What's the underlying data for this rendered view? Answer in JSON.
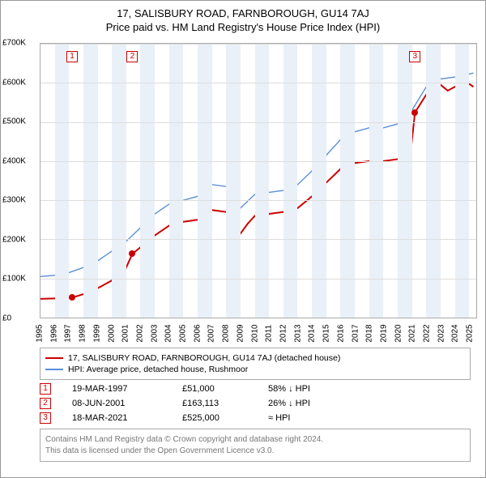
{
  "title": {
    "line1": "17, SALISBURY ROAD, FARNBOROUGH, GU14 7AJ",
    "line2": "Price paid vs. HM Land Registry's House Price Index (HPI)"
  },
  "chart": {
    "type": "line",
    "xlim": [
      1995,
      2025.5
    ],
    "ylim": [
      0,
      700000
    ],
    "ytick_step": 100000,
    "ytick_labels": [
      "£0",
      "£100K",
      "£200K",
      "£300K",
      "£400K",
      "£500K",
      "£600K",
      "£700K"
    ],
    "xtick_step": 1,
    "xtick_start": 1995,
    "xtick_end": 2025,
    "background_color": "#ffffff",
    "grid_color": "#dddddd",
    "alt_band_color": "#eaf0f8",
    "axis_fontsize": 10,
    "series": {
      "price_paid": {
        "label": "17, SALISBURY ROAD, FARNBOROUGH, GU14 7AJ (detached house)",
        "color": "#cc0000",
        "line_width": 2,
        "data": [
          [
            1995.0,
            48000
          ],
          [
            1996.0,
            49000
          ],
          [
            1997.21,
            51000
          ],
          [
            1997.22,
            51000
          ],
          [
            1998.0,
            60000
          ],
          [
            1999.0,
            75000
          ],
          [
            2000.0,
            95000
          ],
          [
            2000.9,
            120000
          ],
          [
            2001.43,
            163113
          ],
          [
            2001.44,
            163113
          ],
          [
            2002.0,
            180000
          ],
          [
            2003.0,
            210000
          ],
          [
            2004.0,
            235000
          ],
          [
            2005.0,
            245000
          ],
          [
            2006.0,
            250000
          ],
          [
            2007.0,
            275000
          ],
          [
            2008.0,
            270000
          ],
          [
            2008.7,
            225000
          ],
          [
            2009.0,
            215000
          ],
          [
            2009.5,
            240000
          ],
          [
            2010.0,
            260000
          ],
          [
            2011.0,
            265000
          ],
          [
            2012.0,
            270000
          ],
          [
            2013.0,
            280000
          ],
          [
            2014.0,
            310000
          ],
          [
            2015.0,
            345000
          ],
          [
            2016.0,
            380000
          ],
          [
            2017.0,
            395000
          ],
          [
            2018.0,
            400000
          ],
          [
            2019.0,
            400000
          ],
          [
            2020.0,
            405000
          ],
          [
            2020.9,
            420000
          ],
          [
            2021.21,
            525000
          ],
          [
            2021.22,
            525000
          ],
          [
            2022.0,
            570000
          ],
          [
            2022.7,
            610000
          ],
          [
            2023.0,
            595000
          ],
          [
            2023.5,
            580000
          ],
          [
            2024.0,
            590000
          ],
          [
            2024.7,
            605000
          ],
          [
            2025.3,
            590000
          ]
        ]
      },
      "hpi": {
        "label": "HPI: Average price, detached house, Rushmoor",
        "color": "#5b8fd6",
        "line_width": 1.4,
        "data": [
          [
            1995.0,
            105000
          ],
          [
            1996.0,
            108000
          ],
          [
            1997.0,
            115000
          ],
          [
            1998.0,
            128000
          ],
          [
            1999.0,
            145000
          ],
          [
            2000.0,
            170000
          ],
          [
            2001.0,
            195000
          ],
          [
            2002.0,
            230000
          ],
          [
            2003.0,
            265000
          ],
          [
            2004.0,
            290000
          ],
          [
            2005.0,
            300000
          ],
          [
            2006.0,
            310000
          ],
          [
            2007.0,
            340000
          ],
          [
            2008.0,
            335000
          ],
          [
            2008.7,
            290000
          ],
          [
            2009.0,
            280000
          ],
          [
            2010.0,
            315000
          ],
          [
            2011.0,
            320000
          ],
          [
            2012.0,
            325000
          ],
          [
            2013.0,
            340000
          ],
          [
            2014.0,
            375000
          ],
          [
            2015.0,
            415000
          ],
          [
            2016.0,
            455000
          ],
          [
            2017.0,
            475000
          ],
          [
            2018.0,
            485000
          ],
          [
            2019.0,
            485000
          ],
          [
            2020.0,
            495000
          ],
          [
            2021.0,
            530000
          ],
          [
            2022.0,
            590000
          ],
          [
            2022.7,
            625000
          ],
          [
            2023.0,
            610000
          ],
          [
            2024.0,
            615000
          ],
          [
            2025.3,
            625000
          ]
        ]
      }
    },
    "sale_markers": [
      {
        "id": "1",
        "x": 1997.21,
        "y": 51000
      },
      {
        "id": "2",
        "x": 2001.43,
        "y": 163113
      },
      {
        "id": "3",
        "x": 2021.21,
        "y": 525000
      }
    ]
  },
  "legend": {
    "items": [
      {
        "color": "#cc0000",
        "text": "17, SALISBURY ROAD, FARNBOROUGH, GU14 7AJ (detached house)"
      },
      {
        "color": "#5b8fd6",
        "text": "HPI: Average price, detached house, Rushmoor"
      }
    ]
  },
  "sales": [
    {
      "id": "1",
      "date": "19-MAR-1997",
      "price": "£51,000",
      "diff": "58% ↓ HPI"
    },
    {
      "id": "2",
      "date": "08-JUN-2001",
      "price": "£163,113",
      "diff": "26% ↓ HPI"
    },
    {
      "id": "3",
      "date": "18-MAR-2021",
      "price": "£525,000",
      "diff": "≈ HPI"
    }
  ],
  "attribution": {
    "line1": "Contains HM Land Registry data © Crown copyright and database right 2024.",
    "line2": "This data is licensed under the Open Government Licence v3.0."
  }
}
